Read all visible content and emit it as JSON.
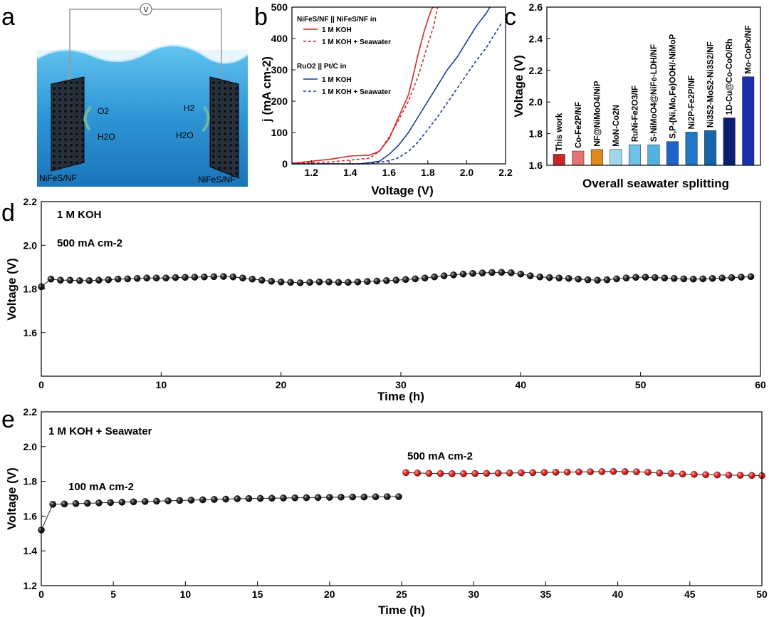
{
  "panel_labels": {
    "a": "a",
    "b": "b",
    "c": "c",
    "d": "d",
    "e": "e"
  },
  "schematic": {
    "meter": "V",
    "left_electrode": "NiFeS/NF",
    "right_electrode": "NiFeS/NF",
    "left_product": "O2",
    "left_reactant": "H2O",
    "right_product": "H2",
    "right_reactant": "H2O"
  },
  "chart_data": [
    {
      "id": "b",
      "type": "line",
      "xlabel": "Voltage (V)",
      "ylabel": "j (mA cm-2)",
      "xlim": [
        1.1,
        2.2
      ],
      "ylim": [
        0,
        500
      ],
      "xticks": [
        1.2,
        1.4,
        1.6,
        1.8,
        2.0,
        2.2
      ],
      "yticks": [
        0,
        100,
        200,
        300,
        400,
        500
      ],
      "legend": {
        "group1_title": "NiFeS/NF || NiFeS/NF in",
        "group2_title": "RuO2 || Pt/C in"
      },
      "series": [
        {
          "name": "1 M KOH",
          "group": 1,
          "color": "#d62728",
          "dash": false,
          "x": [
            1.1,
            1.3,
            1.4,
            1.5,
            1.55,
            1.6,
            1.65,
            1.7,
            1.72,
            1.75,
            1.78,
            1.8,
            1.82,
            1.83
          ],
          "y": [
            2,
            15,
            25,
            28,
            40,
            80,
            150,
            220,
            270,
            350,
            420,
            460,
            495,
            500
          ]
        },
        {
          "name": "1 M KOH + Seawater",
          "group": 1,
          "color": "#d62728",
          "dash": true,
          "x": [
            1.1,
            1.3,
            1.5,
            1.55,
            1.6,
            1.65,
            1.7,
            1.75,
            1.8,
            1.83,
            1.85
          ],
          "y": [
            2,
            6,
            18,
            40,
            85,
            140,
            200,
            280,
            380,
            440,
            500
          ]
        },
        {
          "name": "1 M KOH",
          "group": 2,
          "color": "#1f3a93",
          "dash": false,
          "x": [
            1.1,
            1.45,
            1.55,
            1.6,
            1.65,
            1.7,
            1.75,
            1.8,
            1.85,
            1.9,
            1.95,
            2.0,
            2.05,
            2.1,
            2.12
          ],
          "y": [
            0,
            0,
            8,
            30,
            60,
            100,
            150,
            200,
            250,
            300,
            340,
            390,
            440,
            480,
            500
          ]
        },
        {
          "name": "1 M KOH + Seawater",
          "group": 2,
          "color": "#1f3a93",
          "dash": true,
          "x": [
            1.1,
            1.5,
            1.6,
            1.65,
            1.7,
            1.75,
            1.8,
            1.85,
            1.9,
            1.95,
            2.0,
            2.05,
            2.1,
            2.15,
            2.18
          ],
          "y": [
            0,
            0,
            10,
            20,
            40,
            70,
            110,
            150,
            195,
            240,
            285,
            330,
            370,
            420,
            450
          ]
        }
      ]
    },
    {
      "id": "c",
      "type": "bar",
      "xlabel": "Overall seawater splitting",
      "ylabel": "Voltage (V)",
      "ylim": [
        1.6,
        2.6
      ],
      "yticks": [
        1.6,
        1.8,
        2.0,
        2.2,
        2.4,
        2.6
      ],
      "categories": [
        "This work",
        "Co-Fe2P/NF",
        "NF@NiMoO4/NiP",
        "MoN-Co2N",
        "RuNi-Fe2O3/IF",
        "S-NiMoO4@NiFe-LDH/NF",
        "S,P-(Ni,Mo,Fe)OOH/-NiMoP",
        "Ni2P-Fe2P/NF",
        "Ni3S2-MoS2-Ni3S2/NF",
        "1D-Cu@Co-CoO/Rh",
        "Mo-CoPx/NF"
      ],
      "values": [
        1.67,
        1.69,
        1.7,
        1.7,
        1.73,
        1.73,
        1.75,
        1.81,
        1.82,
        1.9,
        2.16
      ],
      "colors": [
        "#c62828",
        "#e57373",
        "#e08a1e",
        "#9fd6ec",
        "#6fc2e6",
        "#52b2e0",
        "#1e63c7",
        "#1f78c8",
        "#1565a8",
        "#0b1f6e",
        "#1a2fb0"
      ]
    },
    {
      "id": "d",
      "type": "scatter",
      "xlabel": "Time (h)",
      "ylabel": "Voltage (V)",
      "xlim": [
        0,
        60
      ],
      "ylim": [
        1.4,
        2.2
      ],
      "xticks": [
        0,
        10,
        20,
        30,
        40,
        50,
        60
      ],
      "yticks": [
        1.6,
        1.8,
        2.0,
        2.2
      ],
      "annotations": [
        "1 M KOH",
        "500 mA cm-2"
      ],
      "series": [
        {
          "name": "500 mA cm-2",
          "color": "#111111",
          "x": [
            0,
            0.8,
            1.6,
            2.4,
            3.2,
            4.0,
            4.8,
            5.6,
            6.4,
            7.2,
            8.0,
            8.8,
            9.6,
            10.4,
            11.2,
            12.0,
            12.8,
            13.6,
            14.4,
            15.2,
            16.0,
            16.8,
            17.6,
            18.4,
            19.2,
            20.0,
            20.8,
            21.6,
            22.4,
            23.2,
            24.0,
            24.8,
            25.6,
            26.4,
            27.2,
            28.0,
            28.8,
            29.6,
            30.4,
            31.2,
            32.0,
            32.8,
            33.6,
            34.4,
            35.2,
            36.0,
            36.8,
            37.6,
            38.4,
            39.2,
            40.0,
            40.8,
            41.6,
            42.4,
            43.2,
            44.0,
            44.8,
            45.6,
            46.4,
            47.2,
            48.0,
            48.8,
            49.6,
            50.4,
            51.2,
            52.0,
            52.8,
            53.6,
            54.4,
            55.2,
            56.0,
            56.8,
            57.6,
            58.4,
            59.2
          ],
          "y": [
            1.81,
            1.845,
            1.84,
            1.84,
            1.838,
            1.838,
            1.84,
            1.842,
            1.845,
            1.846,
            1.848,
            1.85,
            1.85,
            1.85,
            1.852,
            1.853,
            1.854,
            1.855,
            1.856,
            1.857,
            1.855,
            1.85,
            1.845,
            1.84,
            1.835,
            1.832,
            1.83,
            1.828,
            1.83,
            1.832,
            1.832,
            1.83,
            1.83,
            1.832,
            1.834,
            1.836,
            1.838,
            1.84,
            1.843,
            1.846,
            1.85,
            1.855,
            1.86,
            1.864,
            1.868,
            1.871,
            1.873,
            1.875,
            1.876,
            1.874,
            1.868,
            1.86,
            1.855,
            1.852,
            1.85,
            1.848,
            1.845,
            1.842,
            1.84,
            1.842,
            1.846,
            1.85,
            1.853,
            1.854,
            1.852,
            1.85,
            1.848,
            1.846,
            1.845,
            1.846,
            1.848,
            1.85,
            1.852,
            1.854,
            1.856
          ]
        }
      ]
    },
    {
      "id": "e",
      "type": "scatter",
      "xlabel": "Time (h)",
      "ylabel": "Voltage (V)",
      "xlim": [
        0,
        50
      ],
      "ylim": [
        1.2,
        2.2
      ],
      "xticks": [
        0,
        5,
        10,
        15,
        20,
        25,
        30,
        35,
        40,
        45,
        50
      ],
      "yticks": [
        1.2,
        1.4,
        1.6,
        1.8,
        2.0,
        2.2
      ],
      "annotations": [
        "1 M KOH + Seawater",
        "100 mA cm-2",
        "500 mA cm-2"
      ],
      "series": [
        {
          "name": "100 mA cm-2",
          "color": "#111111",
          "x": [
            0,
            0.8,
            1.6,
            2.4,
            3.2,
            4.0,
            4.8,
            5.6,
            6.4,
            7.2,
            8.0,
            8.8,
            9.6,
            10.4,
            11.2,
            12.0,
            12.8,
            13.6,
            14.4,
            15.2,
            16.0,
            16.8,
            17.6,
            18.4,
            19.2,
            20.0,
            20.8,
            21.6,
            22.4,
            23.2,
            24.0,
            24.8
          ],
          "y": [
            1.52,
            1.668,
            1.67,
            1.672,
            1.674,
            1.676,
            1.678,
            1.68,
            1.682,
            1.684,
            1.686,
            1.688,
            1.69,
            1.692,
            1.694,
            1.696,
            1.698,
            1.7,
            1.701,
            1.702,
            1.703,
            1.704,
            1.705,
            1.706,
            1.707,
            1.708,
            1.709,
            1.71,
            1.71,
            1.711,
            1.712,
            1.712
          ]
        },
        {
          "name": "500 mA cm-2",
          "color": "#e53935",
          "x": [
            25.3,
            26.1,
            26.9,
            27.7,
            28.5,
            29.3,
            30.1,
            30.9,
            31.7,
            32.5,
            33.3,
            34.1,
            34.9,
            35.7,
            36.5,
            37.3,
            38.1,
            38.9,
            39.7,
            40.5,
            41.3,
            42.1,
            42.9,
            43.7,
            44.5,
            45.3,
            46.1,
            46.9,
            47.7,
            48.5,
            49.3,
            50.0
          ],
          "y": [
            1.85,
            1.848,
            1.846,
            1.845,
            1.844,
            1.844,
            1.845,
            1.846,
            1.847,
            1.848,
            1.849,
            1.85,
            1.851,
            1.852,
            1.853,
            1.854,
            1.855,
            1.856,
            1.857,
            1.856,
            1.855,
            1.852,
            1.848,
            1.845,
            1.842,
            1.84,
            1.838,
            1.837,
            1.836,
            1.835,
            1.834,
            1.833
          ]
        }
      ]
    }
  ]
}
